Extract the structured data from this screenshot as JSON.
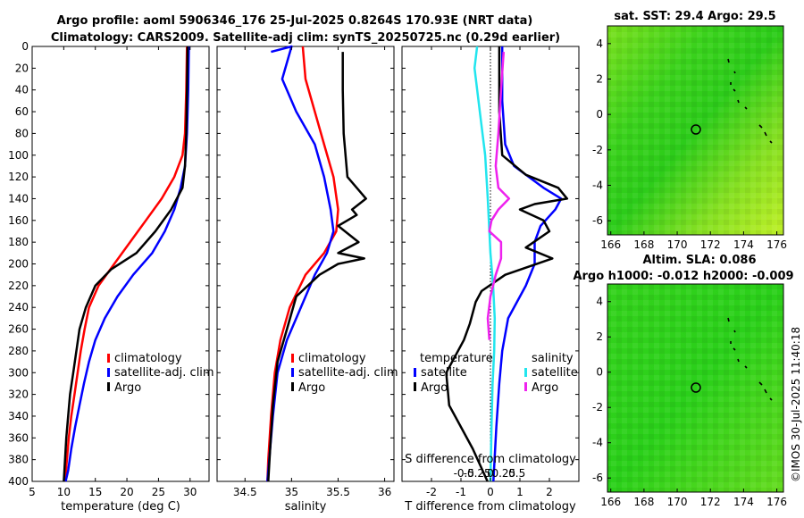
{
  "title_line1": "Argo profile: aoml 5906346_176 25-Jul-2025 0.8264S 170.93E (NRT data)",
  "title_line2": "Climatology: CARS2009. Satellite-adj clim: synTS_20250725.nc (0.29d earlier)",
  "copyright": "©IMOS 30-Jul-2025 11:40:18",
  "colors": {
    "climatology": "#ff0000",
    "satellite": "#0000ff",
    "argo": "#000000",
    "sat_salinity": "#22e5ee",
    "argo_salinity": "#ee22ee"
  },
  "chart_data": [
    {
      "type": "line",
      "name": "temperature-profile",
      "xlabel": "temperature (deg C)",
      "ylabel": "",
      "xlim": [
        5,
        33
      ],
      "ylim": [
        400,
        0
      ],
      "xticks": [
        "5",
        "10",
        "15",
        "20",
        "25",
        "30"
      ],
      "yticks": [
        "0",
        "20",
        "40",
        "60",
        "80",
        "100",
        "120",
        "140",
        "160",
        "180",
        "200",
        "220",
        "240",
        "260",
        "280",
        "300",
        "320",
        "340",
        "360",
        "380",
        "400"
      ],
      "legend": [
        "climatology",
        "satellite-adj. clim",
        "Argo"
      ],
      "series": [
        {
          "name": "climatology",
          "color": "#ff0000",
          "points": [
            [
              29.5,
              0
            ],
            [
              29.4,
              40
            ],
            [
              29.2,
              80
            ],
            [
              28.8,
              100
            ],
            [
              27.5,
              120
            ],
            [
              25.5,
              140
            ],
            [
              23,
              160
            ],
            [
              20.5,
              180
            ],
            [
              18,
              200
            ],
            [
              15.5,
              220
            ],
            [
              14,
              240
            ],
            [
              13.3,
              260
            ],
            [
              12.7,
              280
            ],
            [
              12.2,
              300
            ],
            [
              11.7,
              320
            ],
            [
              11.2,
              340
            ],
            [
              10.8,
              360
            ],
            [
              10.5,
              380
            ],
            [
              10.2,
              400
            ]
          ]
        },
        {
          "name": "satellite-adj. clim",
          "color": "#0000ff",
          "points": [
            [
              29.8,
              0
            ],
            [
              29.7,
              40
            ],
            [
              29.5,
              80
            ],
            [
              29.2,
              110
            ],
            [
              28.5,
              130
            ],
            [
              27.5,
              150
            ],
            [
              26,
              170
            ],
            [
              24,
              190
            ],
            [
              21,
              210
            ],
            [
              18.5,
              230
            ],
            [
              16.5,
              250
            ],
            [
              15,
              270
            ],
            [
              14,
              290
            ],
            [
              13.2,
              310
            ],
            [
              12.5,
              330
            ],
            [
              11.8,
              350
            ],
            [
              11.2,
              370
            ],
            [
              10.7,
              390
            ],
            [
              10.3,
              400
            ]
          ]
        },
        {
          "name": "Argo",
          "color": "#000000",
          "points": [
            [
              29.6,
              0
            ],
            [
              29.5,
              40
            ],
            [
              29.4,
              80
            ],
            [
              29.2,
              110
            ],
            [
              28.8,
              130
            ],
            [
              27,
              150
            ],
            [
              24.5,
              170
            ],
            [
              21.5,
              190
            ],
            [
              17.5,
              205
            ],
            [
              15,
              220
            ],
            [
              13.5,
              240
            ],
            [
              12.5,
              260
            ],
            [
              12,
              280
            ],
            [
              11.5,
              300
            ],
            [
              11,
              320
            ],
            [
              10.7,
              340
            ],
            [
              10.4,
              360
            ],
            [
              10.2,
              380
            ],
            [
              10,
              400
            ]
          ]
        }
      ]
    },
    {
      "type": "line",
      "name": "salinity-profile",
      "xlabel": "salinity",
      "xlim": [
        34.2,
        36.1
      ],
      "ylim": [
        400,
        0
      ],
      "xticks": [
        "34.5",
        "35",
        "35.5",
        "36"
      ],
      "legend": [
        "climatology",
        "satellite-adj. clim",
        "Argo"
      ],
      "series": [
        {
          "name": "climatology",
          "color": "#ff0000",
          "points": [
            [
              35.12,
              0
            ],
            [
              35.15,
              30
            ],
            [
              35.25,
              60
            ],
            [
              35.35,
              90
            ],
            [
              35.45,
              120
            ],
            [
              35.5,
              150
            ],
            [
              35.48,
              170
            ],
            [
              35.35,
              190
            ],
            [
              35.15,
              210
            ],
            [
              34.98,
              240
            ],
            [
              34.88,
              270
            ],
            [
              34.82,
              300
            ],
            [
              34.78,
              340
            ],
            [
              34.75,
              380
            ],
            [
              34.74,
              400
            ]
          ]
        },
        {
          "name": "satellite-adj. clim",
          "color": "#0000ff",
          "points": [
            [
              34.78,
              5
            ],
            [
              35.0,
              0
            ],
            [
              34.9,
              30
            ],
            [
              35.05,
              60
            ],
            [
              35.25,
              90
            ],
            [
              35.35,
              120
            ],
            [
              35.42,
              150
            ],
            [
              35.45,
              170
            ],
            [
              35.38,
              190
            ],
            [
              35.25,
              210
            ],
            [
              35.1,
              240
            ],
            [
              34.95,
              270
            ],
            [
              34.85,
              300
            ],
            [
              34.8,
              340
            ],
            [
              34.76,
              380
            ],
            [
              34.74,
              400
            ]
          ]
        },
        {
          "name": "Argo",
          "color": "#000000",
          "points": [
            [
              35.55,
              5
            ],
            [
              35.55,
              40
            ],
            [
              35.56,
              80
            ],
            [
              35.6,
              120
            ],
            [
              35.8,
              140
            ],
            [
              35.65,
              150
            ],
            [
              35.7,
              155
            ],
            [
              35.5,
              165
            ],
            [
              35.72,
              180
            ],
            [
              35.5,
              190
            ],
            [
              35.78,
              195
            ],
            [
              35.5,
              200
            ],
            [
              35.3,
              210
            ],
            [
              35.05,
              230
            ],
            [
              34.95,
              260
            ],
            [
              34.85,
              290
            ],
            [
              34.8,
              330
            ],
            [
              34.77,
              370
            ],
            [
              34.75,
              400
            ]
          ]
        }
      ]
    },
    {
      "type": "line",
      "name": "difference-profile",
      "xlabel": "T difference from climatology",
      "xlabel2": "S difference from climatology",
      "xlim": [
        -3,
        3
      ],
      "ylim": [
        400,
        0
      ],
      "xticks": [
        "-2",
        "-1",
        "0",
        "1",
        "2"
      ],
      "xticks2": [
        "-0.5",
        "-0.25",
        "0",
        "0.25",
        "0.5"
      ],
      "legend_left_title": "temperature",
      "legend_right_title": "salinity",
      "legend_left": [
        "satellite",
        "Argo"
      ],
      "legend_right": [
        "satellite",
        "Argo"
      ],
      "series": [
        {
          "name": "T satellite",
          "color": "#0000ff",
          "points": [
            [
              0.4,
              0
            ],
            [
              0.4,
              50
            ],
            [
              0.5,
              90
            ],
            [
              0.8,
              110
            ],
            [
              1.8,
              130
            ],
            [
              2.4,
              140
            ],
            [
              2.2,
              150
            ],
            [
              1.7,
              165
            ],
            [
              1.5,
              180
            ],
            [
              1.5,
              200
            ],
            [
              1.2,
              220
            ],
            [
              0.6,
              250
            ],
            [
              0.4,
              280
            ],
            [
              0.3,
              310
            ],
            [
              0.2,
              350
            ],
            [
              0.1,
              400
            ]
          ]
        },
        {
          "name": "T Argo",
          "color": "#000000",
          "points": [
            [
              0.3,
              0
            ],
            [
              0.3,
              60
            ],
            [
              0.4,
              100
            ],
            [
              1.2,
              118
            ],
            [
              2.3,
              130
            ],
            [
              2.6,
              140
            ],
            [
              1.5,
              145
            ],
            [
              1.0,
              150
            ],
            [
              1.8,
              160
            ],
            [
              2.0,
              170
            ],
            [
              1.2,
              185
            ],
            [
              2.1,
              195
            ],
            [
              0.5,
              210
            ],
            [
              -0.3,
              225
            ],
            [
              -0.5,
              235
            ],
            [
              -0.7,
              255
            ],
            [
              -0.9,
              270
            ],
            [
              -1.5,
              300
            ],
            [
              -1.4,
              330
            ],
            [
              -0.6,
              370
            ],
            [
              -0.1,
              400
            ]
          ]
        },
        {
          "name": "S satellite",
          "color": "#22e5ee",
          "points": [
            [
              -0.25,
              0
            ],
            [
              -0.3,
              20
            ],
            [
              -0.2,
              60
            ],
            [
              -0.1,
              100
            ],
            [
              -0.05,
              140
            ],
            [
              -0.02,
              170
            ],
            [
              0,
              190
            ],
            [
              0.05,
              220
            ],
            [
              0.08,
              250
            ],
            [
              0.07,
              280
            ],
            [
              0.04,
              310
            ],
            [
              0.02,
              350
            ],
            [
              0,
              400
            ]
          ]
        },
        {
          "name": "S Argo",
          "color": "#ee22ee",
          "points": [
            [
              0.25,
              5
            ],
            [
              0.2,
              40
            ],
            [
              0.15,
              80
            ],
            [
              0.1,
              110
            ],
            [
              0.15,
              130
            ],
            [
              0.35,
              140
            ],
            [
              0.15,
              150
            ],
            [
              0.02,
              160
            ],
            [
              -0.02,
              170
            ],
            [
              0.2,
              180
            ],
            [
              0.2,
              195
            ],
            [
              0.1,
              210
            ],
            [
              0.0,
              230
            ],
            [
              -0.05,
              250
            ],
            [
              -0.02,
              270
            ]
          ]
        }
      ]
    },
    {
      "type": "heatmap",
      "name": "sst-map",
      "title": "sat. SST: 29.4 Argo: 29.5",
      "xticks": [
        "166",
        "168",
        "170",
        "172",
        "174",
        "176"
      ],
      "yticks": [
        "4",
        "2",
        "0",
        "-2",
        "-4",
        "-6"
      ],
      "xlim": [
        165.8,
        176.4
      ],
      "ylim": [
        -6.8,
        5.0
      ],
      "marker": [
        170.93,
        -0.83
      ]
    },
    {
      "type": "heatmap",
      "name": "sla-map",
      "title": "Altim. SLA: 0.086",
      "subtitle": "Argo h1000: -0.012 h2000: -0.009",
      "xticks": [
        "166",
        "168",
        "170",
        "172",
        "174",
        "176"
      ],
      "yticks": [
        "4",
        "2",
        "0",
        "-2",
        "-4",
        "-6"
      ],
      "xlim": [
        165.8,
        176.4
      ],
      "ylim": [
        -6.8,
        5.0
      ],
      "marker": [
        170.93,
        -0.83
      ]
    }
  ]
}
